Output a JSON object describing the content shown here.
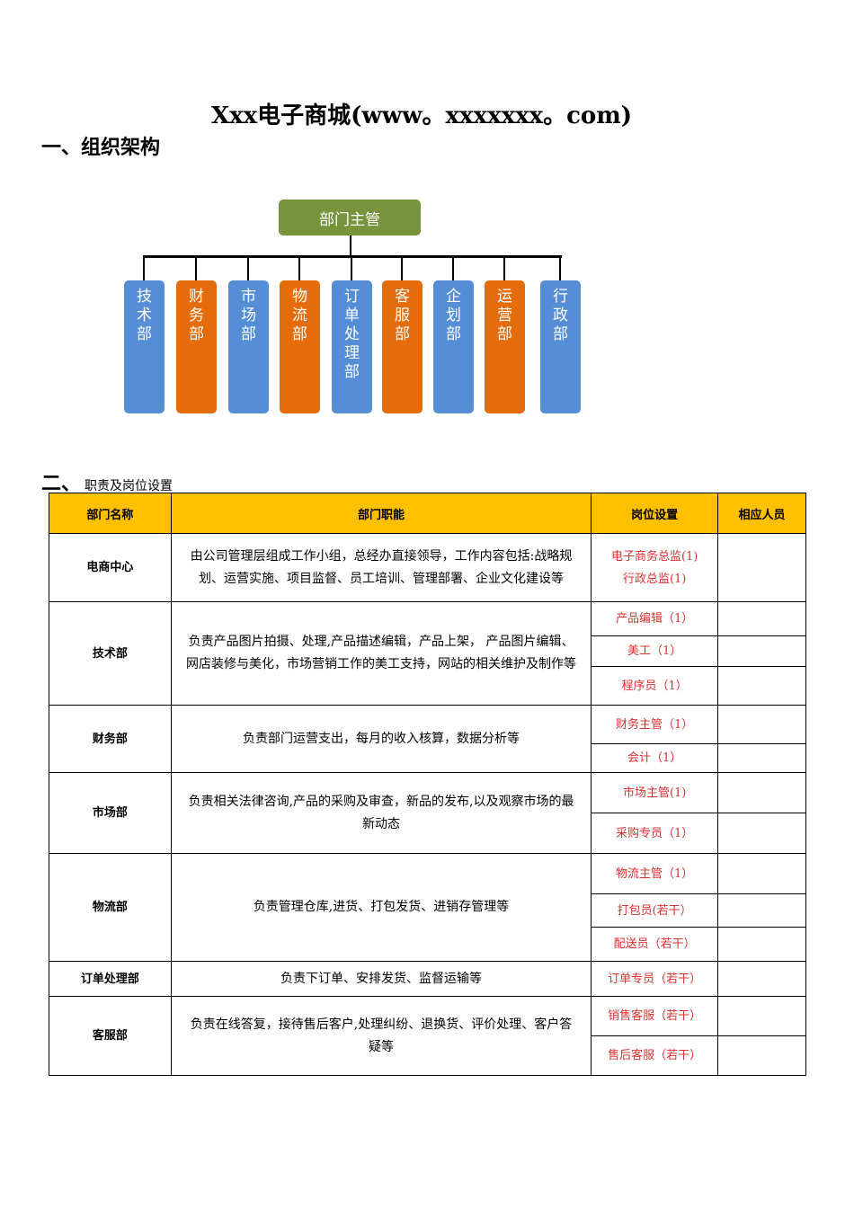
{
  "title": "Xxx电子商城(www。xxxxxxx。com)",
  "section1": "一、组织架构",
  "section2": {
    "num": "二、",
    "label": "职责及岗位设置"
  },
  "org": {
    "root": "部门主管",
    "depts": [
      {
        "name": "技术部",
        "color": "#558ed5"
      },
      {
        "name": "财务部",
        "color": "#e46c0a"
      },
      {
        "name": "市场部",
        "color": "#558ed5"
      },
      {
        "name": "物流部",
        "color": "#e46c0a"
      },
      {
        "name": "订单处理部",
        "color": "#558ed5"
      },
      {
        "name": "客服部",
        "color": "#e46c0a"
      },
      {
        "name": "企划部",
        "color": "#558ed5"
      },
      {
        "name": "运营部",
        "color": "#e46c0a"
      },
      {
        "name": "行政部",
        "color": "#558ed5"
      }
    ],
    "root_color": "#77933c"
  },
  "table": {
    "headers": [
      "部门名称",
      "部门职能",
      "岗位设置",
      "相应人员"
    ],
    "header_color": "#ffc000",
    "rows": [
      {
        "name": "电商中心",
        "duty": "由公司管理层组成工作小组，总经办直接领导，工作内容包括:战略规划、运营实施、项目监督、员工培训、管理部署、企业文化建设等",
        "positions": [
          [
            "电子商务总监(1)",
            "行政总监(1)"
          ]
        ]
      },
      {
        "name": "技术部",
        "duty": "负责产品图片拍摄、处理,产品描述编辑，产品上架， 产品图片编辑、网店装修与美化，市场营销工作的美工支持，网站的相关维护及制作等",
        "positions": [
          [
            "产品编辑（1）"
          ],
          [
            "美工（1）"
          ],
          [
            "程序员（1）"
          ]
        ]
      },
      {
        "name": "财务部",
        "duty": "负责部门运营支出，每月的收入核算，数据分析等",
        "positions": [
          [
            "财务主管（1）"
          ],
          [
            "会计（1）"
          ]
        ]
      },
      {
        "name": "市场部",
        "duty": "负责相关法律咨询,产品的采购及审查，新品的发布,以及观察市场的最新动态",
        "positions": [
          [
            "市场主管(1)"
          ],
          [
            "采购专员（1）"
          ]
        ]
      },
      {
        "name": "物流部",
        "duty": "负责管理仓库,进货、打包发货、进销存管理等",
        "positions": [
          [
            "物流主管（1）"
          ],
          [
            "打包员(若干）"
          ],
          [
            "配送员（若干）"
          ]
        ]
      },
      {
        "name": "订单处理部",
        "duty": "负责下订单、安排发货、监督运输等",
        "positions": [
          [
            "订单专员（若干）"
          ]
        ]
      },
      {
        "name": "客服部",
        "duty": "负责在线答复，接待售后客户,处理纠纷、退换货、评价处理、客户答疑等",
        "positions": [
          [
            "销售客服（若干）"
          ],
          [
            "售后客服（若干）"
          ]
        ]
      }
    ]
  }
}
